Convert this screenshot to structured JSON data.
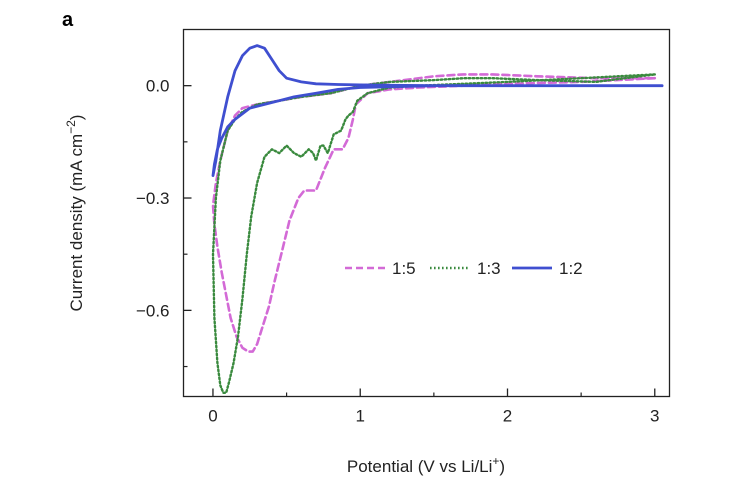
{
  "chart_data": {
    "type": "line",
    "panel_label": "a",
    "xlabel": "Potential (V vs Li/Li⁺)",
    "ylabel": "Current density (mA cm⁻²)",
    "xlim": [
      -0.2,
      3.1
    ],
    "ylim": [
      -0.83,
      0.15
    ],
    "x_ticks": [
      0,
      1,
      2,
      3
    ],
    "x_tick_labels": [
      "0",
      "1",
      "2",
      "3"
    ],
    "x_minor_ticks": [
      0.5,
      1.5,
      2.5
    ],
    "y_ticks": [
      0.0,
      -0.3,
      -0.6
    ],
    "y_tick_labels": [
      "0.0",
      "−0.3",
      "−0.6"
    ],
    "y_minor_ticks": [
      -0.15,
      -0.45,
      -0.75
    ],
    "grid": false,
    "legend_placement": "middle-right, horizontal",
    "series": [
      {
        "name": "1:5",
        "color": "#d36ad6",
        "dash": "dashed",
        "x": [
          3.0,
          2.5,
          2.0,
          1.7,
          1.4,
          1.2,
          1.05,
          0.97,
          0.95,
          0.92,
          0.88,
          0.82,
          0.76,
          0.7,
          0.62,
          0.58,
          0.52,
          0.47,
          0.42,
          0.38,
          0.34,
          0.3,
          0.27,
          0.24,
          0.2,
          0.16,
          0.12,
          0.09,
          0.06,
          0.03,
          0.01,
          0.0,
          0.02,
          0.05,
          0.1,
          0.15,
          0.2,
          0.3,
          0.45,
          0.6,
          0.8,
          1.0,
          1.2,
          1.5,
          1.7,
          1.9,
          2.2,
          2.6,
          3.0
        ],
        "y": [
          0.02,
          0.01,
          0.005,
          0.0,
          -0.005,
          -0.01,
          -0.02,
          -0.05,
          -0.09,
          -0.14,
          -0.17,
          -0.17,
          -0.22,
          -0.28,
          -0.28,
          -0.3,
          -0.36,
          -0.44,
          -0.52,
          -0.59,
          -0.64,
          -0.69,
          -0.71,
          -0.71,
          -0.7,
          -0.67,
          -0.62,
          -0.56,
          -0.5,
          -0.43,
          -0.37,
          -0.32,
          -0.26,
          -0.2,
          -0.12,
          -0.08,
          -0.06,
          -0.05,
          -0.04,
          -0.03,
          -0.02,
          0.0,
          0.01,
          0.025,
          0.03,
          0.03,
          0.025,
          0.02,
          0.02
        ]
      },
      {
        "name": "1:3",
        "color": "#3a8a3e",
        "dash": "dotted",
        "x": [
          3.0,
          2.5,
          2.0,
          1.7,
          1.4,
          1.2,
          1.05,
          0.98,
          0.95,
          0.92,
          0.9,
          0.87,
          0.82,
          0.78,
          0.75,
          0.73,
          0.7,
          0.68,
          0.65,
          0.6,
          0.55,
          0.5,
          0.45,
          0.4,
          0.35,
          0.3,
          0.26,
          0.23,
          0.2,
          0.17,
          0.14,
          0.11,
          0.09,
          0.07,
          0.05,
          0.03,
          0.01,
          0.0,
          0.02,
          0.05,
          0.1,
          0.15,
          0.2,
          0.3,
          0.45,
          0.6,
          0.8,
          1.0,
          1.2,
          1.5,
          1.7,
          1.9,
          2.2,
          2.6,
          3.0
        ],
        "y": [
          0.03,
          0.02,
          0.01,
          0.005,
          0.0,
          -0.005,
          -0.02,
          -0.04,
          -0.07,
          -0.08,
          -0.09,
          -0.12,
          -0.13,
          -0.18,
          -0.16,
          -0.16,
          -0.2,
          -0.18,
          -0.17,
          -0.19,
          -0.18,
          -0.16,
          -0.18,
          -0.17,
          -0.19,
          -0.26,
          -0.35,
          -0.45,
          -0.57,
          -0.67,
          -0.74,
          -0.79,
          -0.82,
          -0.82,
          -0.8,
          -0.74,
          -0.62,
          -0.45,
          -0.3,
          -0.2,
          -0.12,
          -0.09,
          -0.07,
          -0.05,
          -0.04,
          -0.03,
          -0.02,
          0.0,
          0.01,
          0.015,
          0.02,
          0.02,
          0.015,
          0.01,
          0.03
        ]
      },
      {
        "name": "1:2",
        "color": "#3f4fd0",
        "dash": "solid",
        "x": [
          3.05,
          2.5,
          2.0,
          1.5,
          1.0,
          0.85,
          0.7,
          0.55,
          0.45,
          0.35,
          0.25,
          0.15,
          0.1,
          0.06,
          0.03,
          0.01,
          0.0,
          0.02,
          0.05,
          0.1,
          0.15,
          0.2,
          0.25,
          0.3,
          0.35,
          0.4,
          0.45,
          0.5,
          0.6,
          0.7,
          0.85,
          1.0,
          1.2,
          1.5,
          2.0,
          2.5,
          3.05
        ],
        "y": [
          0.0,
          0.0,
          0.0,
          0.0,
          -0.005,
          -0.01,
          -0.02,
          -0.03,
          -0.04,
          -0.05,
          -0.06,
          -0.09,
          -0.11,
          -0.14,
          -0.17,
          -0.21,
          -0.24,
          -0.2,
          -0.12,
          -0.03,
          0.04,
          0.08,
          0.1,
          0.107,
          0.1,
          0.07,
          0.04,
          0.02,
          0.01,
          0.005,
          0.003,
          0.002,
          0.001,
          0.0,
          0.0,
          0.0,
          0.0
        ]
      }
    ]
  }
}
